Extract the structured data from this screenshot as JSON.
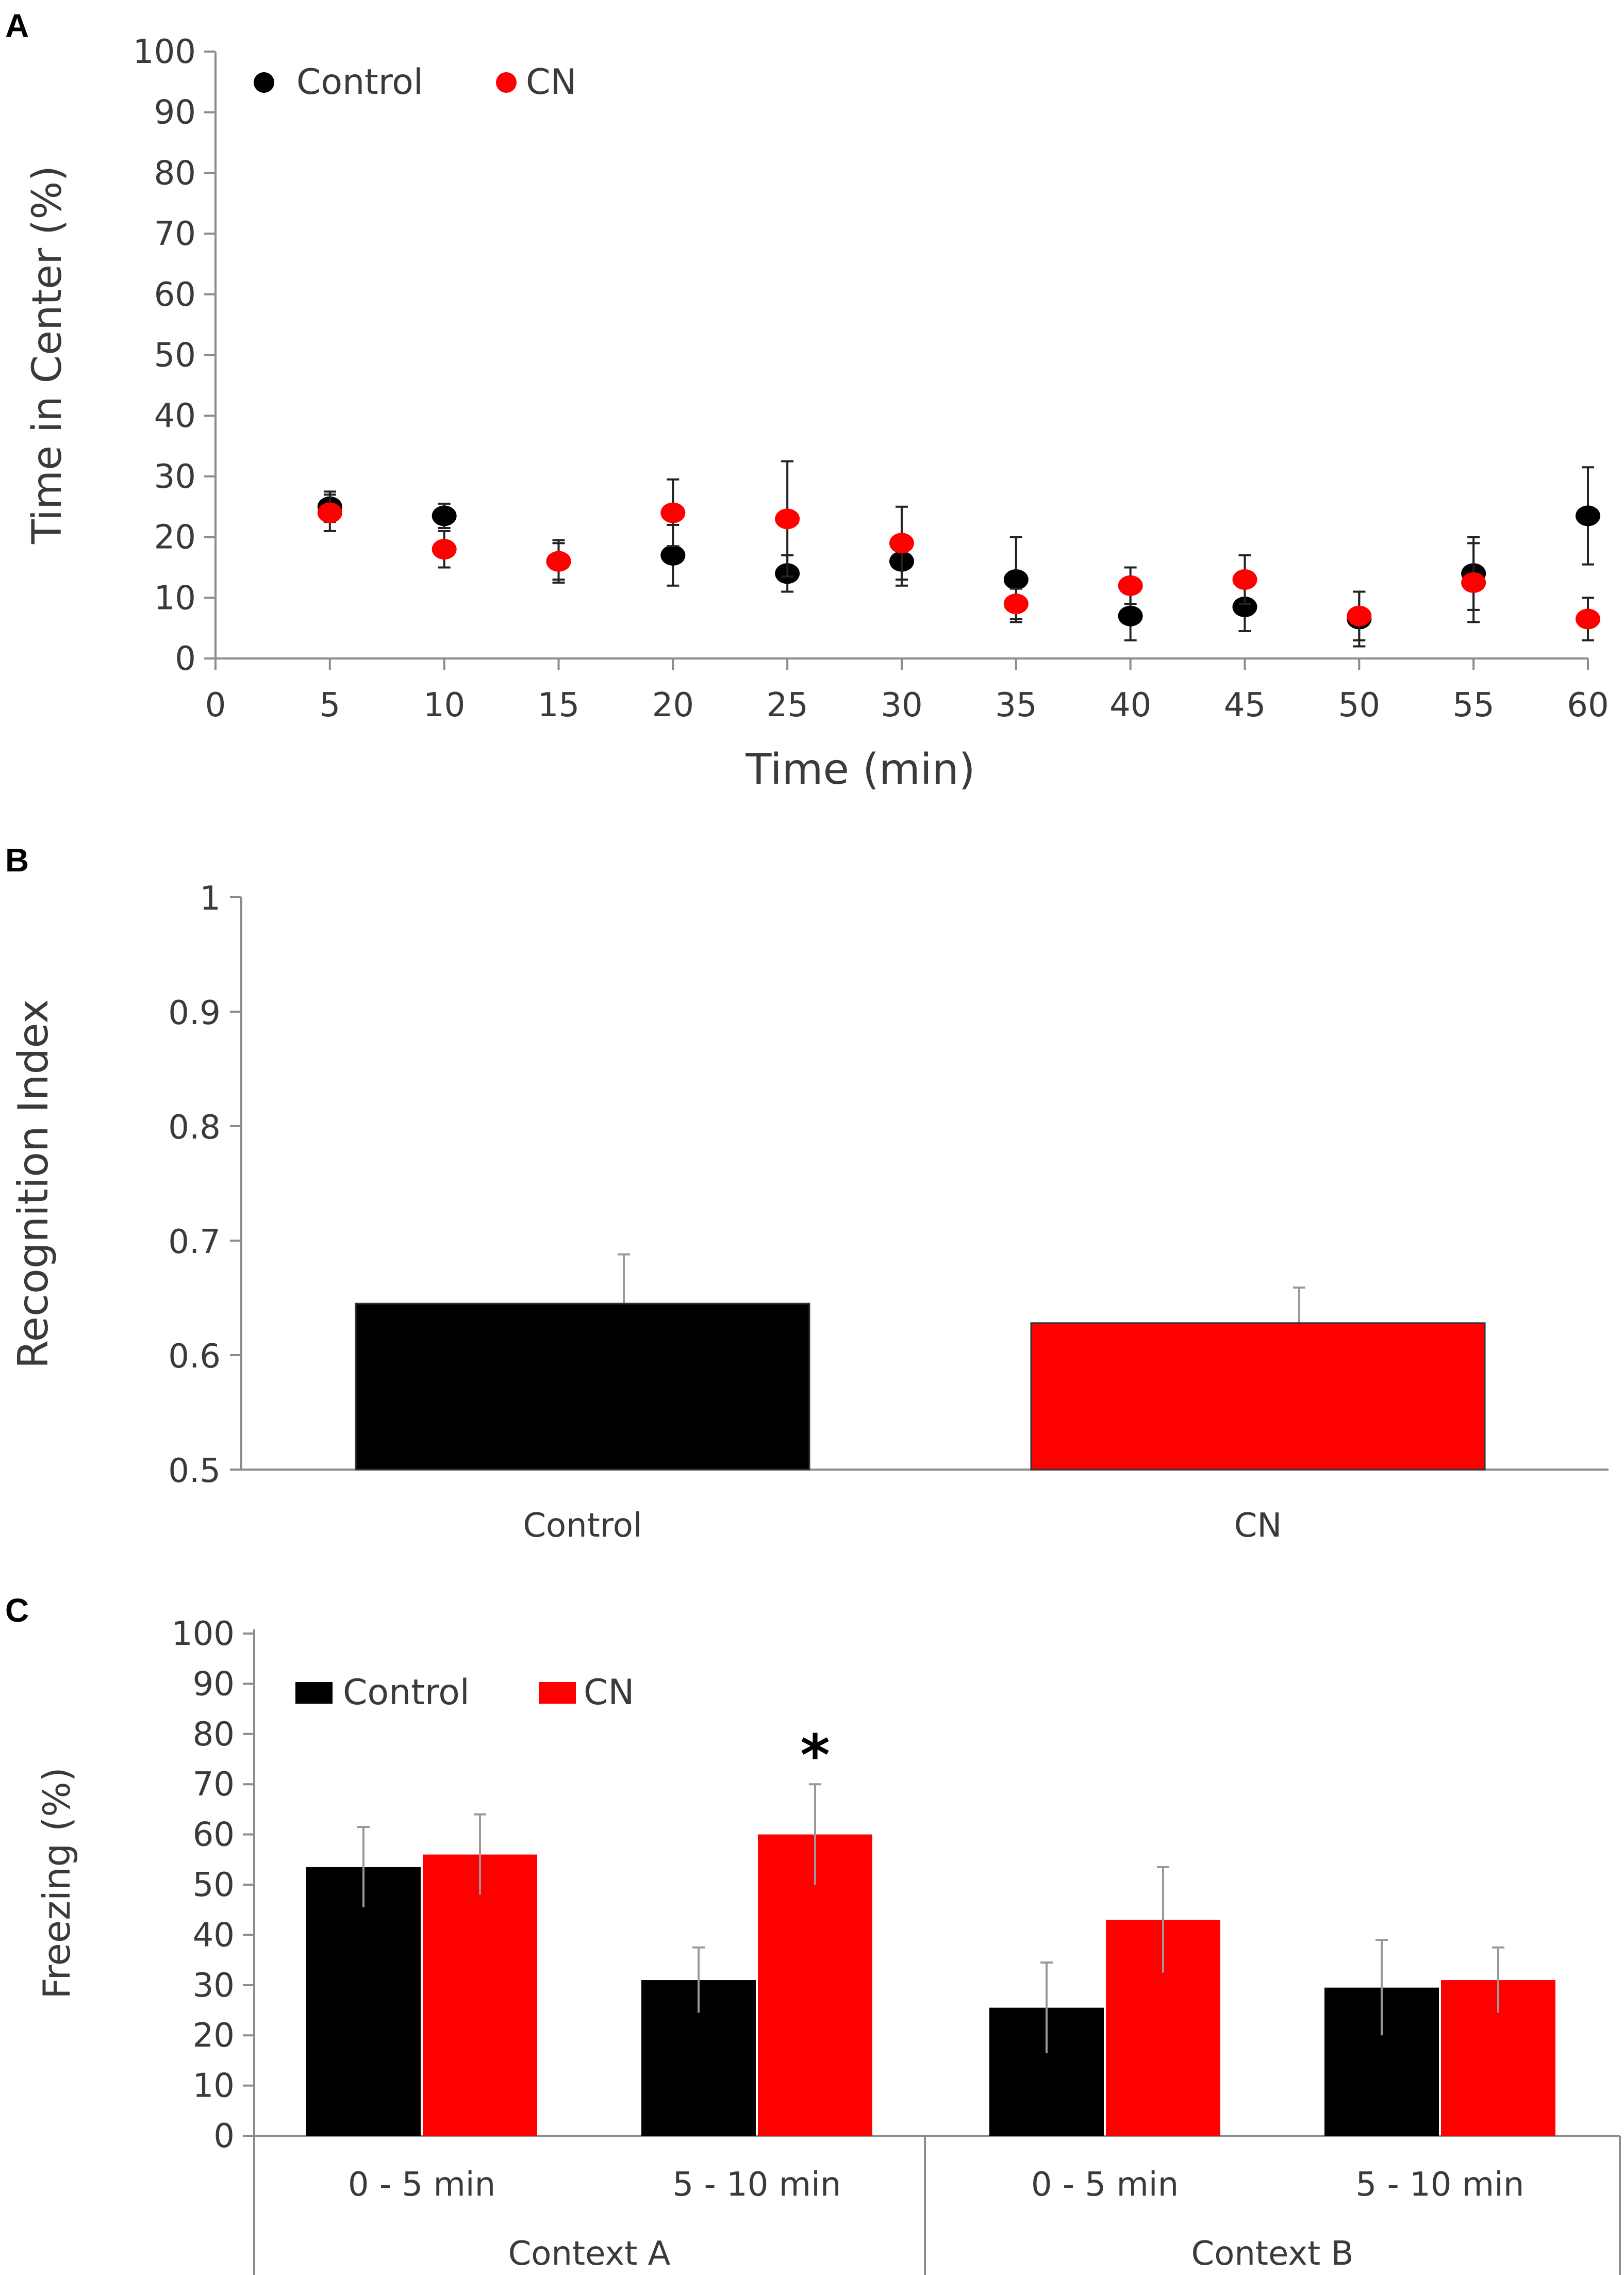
{
  "colors": {
    "control": "#000000",
    "cn": "#ff0000"
  },
  "chart_data": [
    {
      "panel": "A",
      "type": "scatter",
      "xlabel": "Time (min)",
      "ylabel": "Time in Center (%)",
      "xlim": [
        0,
        60
      ],
      "ylim": [
        0,
        100
      ],
      "xticks": [
        0,
        5,
        10,
        15,
        20,
        25,
        30,
        35,
        40,
        45,
        50,
        55,
        60
      ],
      "yticks": [
        0,
        10,
        20,
        30,
        40,
        50,
        60,
        70,
        80,
        90,
        100
      ],
      "legend": [
        "Control",
        "CN"
      ],
      "legend_position": "top-left",
      "series": [
        {
          "name": "Control",
          "x": [
            5,
            10,
            15,
            20,
            25,
            30,
            35,
            40,
            45,
            50,
            55,
            60
          ],
          "values": [
            25,
            23.5,
            16,
            17,
            14,
            16,
            13,
            7,
            8.5,
            6.5,
            14,
            23.5
          ],
          "errors": [
            2.5,
            2,
            3.5,
            5,
            3,
            4,
            7,
            4,
            4,
            4.5,
            6,
            8
          ]
        },
        {
          "name": "CN",
          "x": [
            5,
            10,
            15,
            20,
            25,
            30,
            35,
            40,
            45,
            50,
            55,
            60
          ],
          "values": [
            24,
            18,
            16,
            24,
            23,
            19,
            9,
            12,
            13,
            7,
            12.5,
            6.5
          ],
          "errors": [
            3,
            3,
            3,
            5.5,
            9.5,
            6,
            2.5,
            3,
            4,
            4,
            6.5,
            3.5
          ]
        }
      ]
    },
    {
      "panel": "B",
      "type": "bar",
      "categories": [
        "Control",
        "CN"
      ],
      "values": [
        0.645,
        0.628
      ],
      "errors": [
        0.043,
        0.031
      ],
      "ylabel": "Recognition Index",
      "ylim": [
        0.5,
        1
      ],
      "yticks": [
        "0.5",
        "0.6",
        "0.7",
        "0.8",
        "0.9",
        "1"
      ]
    },
    {
      "panel": "C",
      "type": "bar",
      "ylabel": "Freezing (%)",
      "ylim": [
        0,
        100
      ],
      "yticks": [
        0,
        10,
        20,
        30,
        40,
        50,
        60,
        70,
        80,
        90,
        100
      ],
      "legend": [
        "Control",
        "CN"
      ],
      "legend_position": "top-left",
      "groups": [
        "Context A",
        "Context B"
      ],
      "categories": [
        "0 - 5 min",
        "5 - 10 min",
        "0 - 5 min",
        "5 - 10 min"
      ],
      "series": [
        {
          "name": "Control",
          "values": [
            53.5,
            31,
            25.5,
            29.5
          ],
          "errors": [
            8,
            6.5,
            9,
            9.5
          ]
        },
        {
          "name": "CN",
          "values": [
            56,
            60,
            43,
            31
          ],
          "errors": [
            8,
            10,
            10.5,
            6.5
          ]
        }
      ],
      "annotations": [
        {
          "category_index": 1,
          "series": "CN",
          "text": "*"
        }
      ]
    }
  ]
}
